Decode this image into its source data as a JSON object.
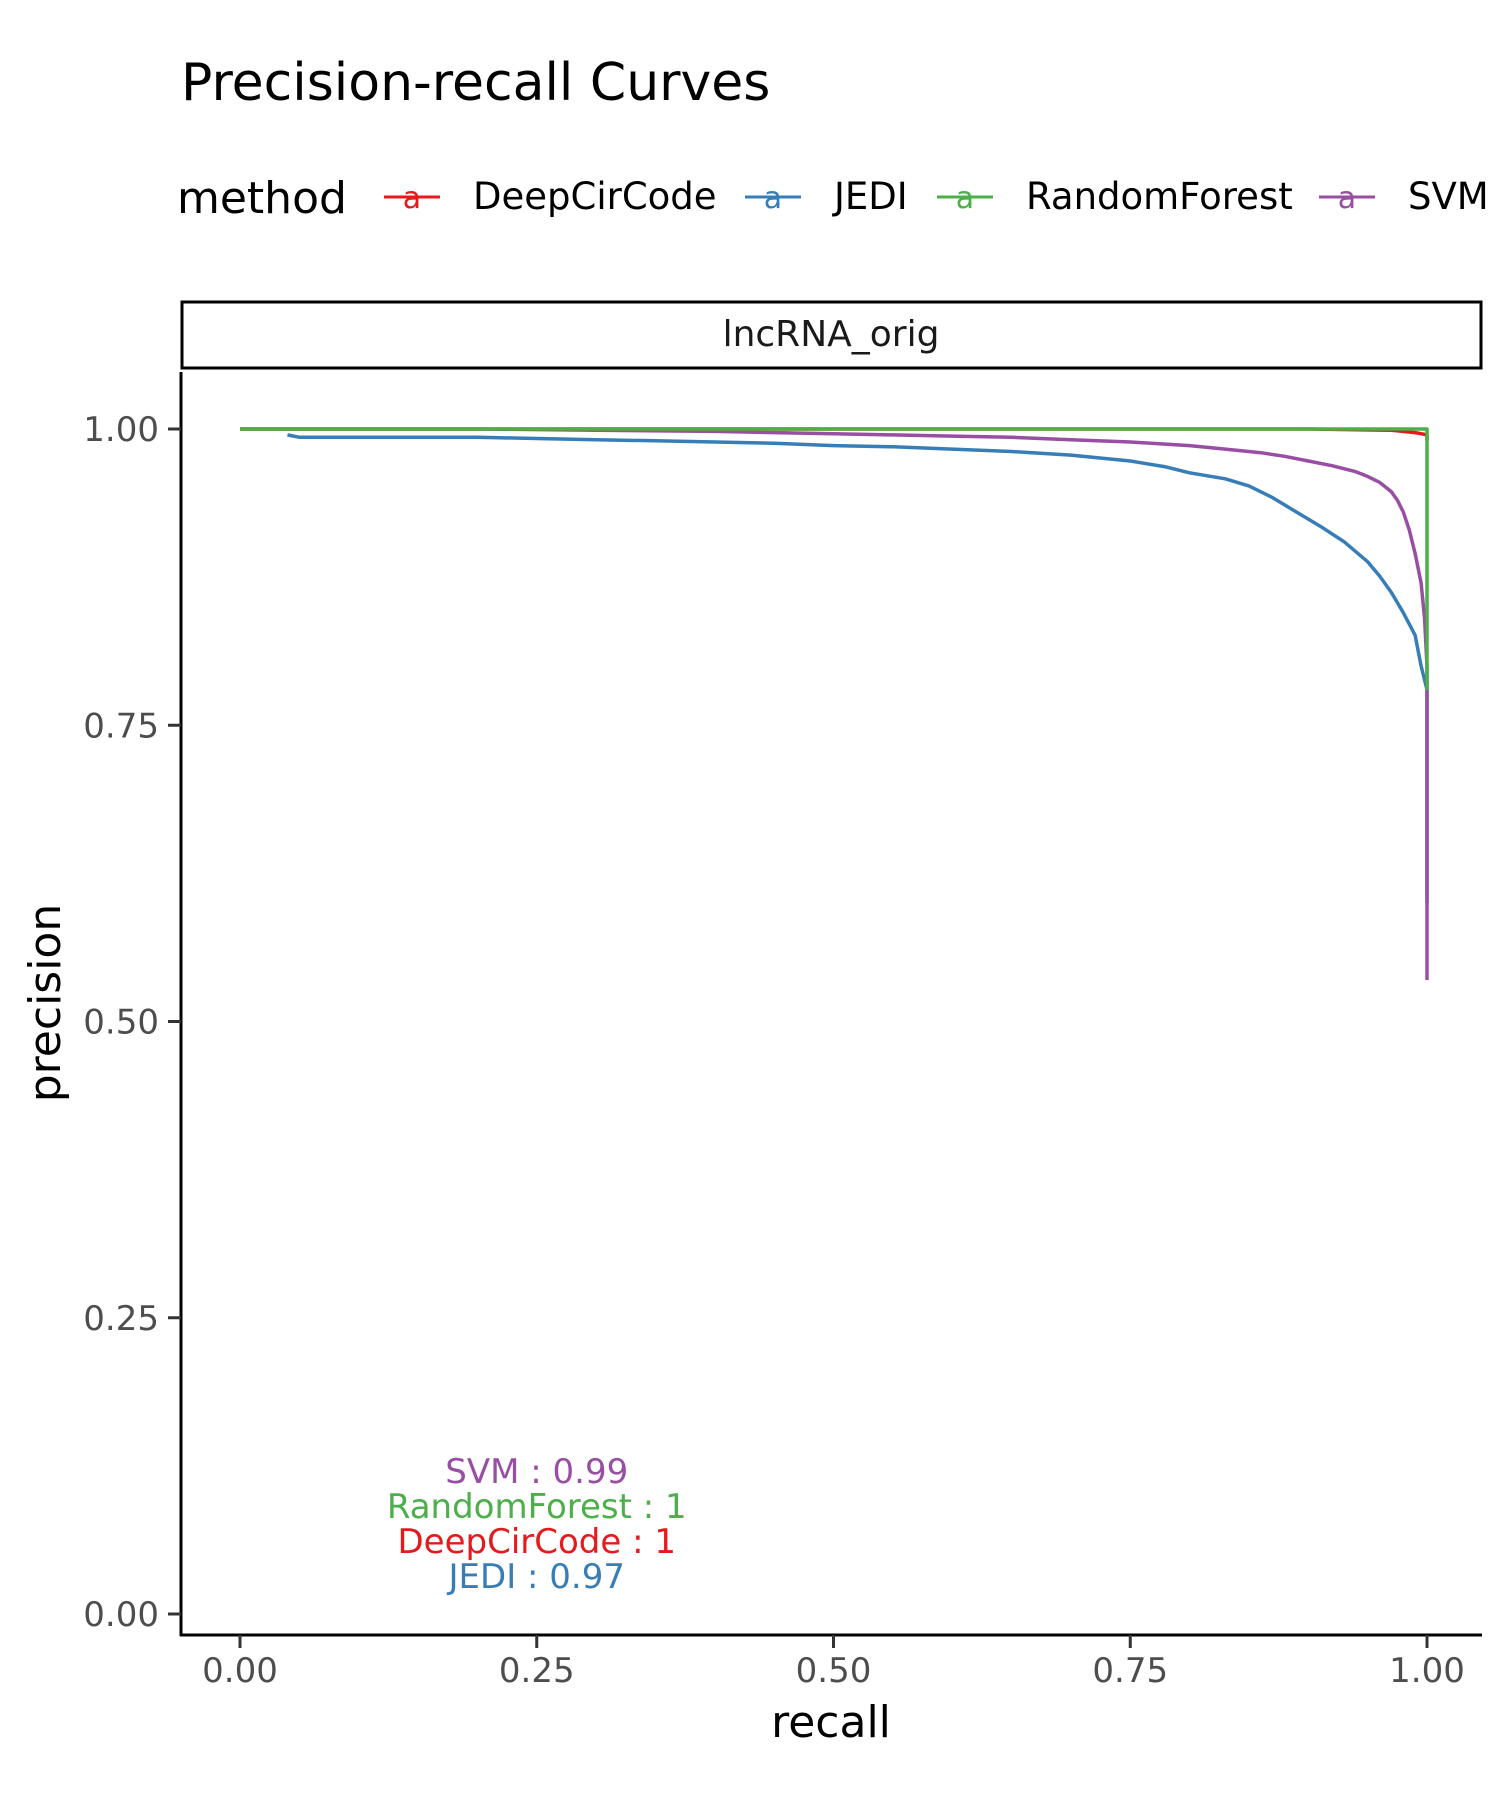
{
  "chart_data": {
    "type": "line",
    "title": "Precision-recall Curves",
    "xlabel": "recall",
    "ylabel": "precision",
    "xlim": [
      0,
      1
    ],
    "ylim": [
      0,
      1
    ],
    "x_ticks": [
      "0.00",
      "0.25",
      "0.50",
      "0.75",
      "1.00"
    ],
    "y_ticks": [
      "0.00",
      "0.25",
      "0.50",
      "0.75",
      "1.00"
    ],
    "facet_label": "lncRNA_orig",
    "legend": {
      "title": "method",
      "position": "top",
      "key_glyph": "a",
      "entries": [
        "DeepCirCode",
        "JEDI",
        "RandomForest",
        "SVM"
      ]
    },
    "grid": false,
    "series": [
      {
        "name": "DeepCirCode",
        "color": "#e41a1c",
        "x": [
          0.0,
          0.5,
          0.9,
          0.97,
          0.99,
          0.995,
          1.0,
          1.0
        ],
        "y": [
          1.0,
          1.0,
          1.0,
          0.999,
          0.997,
          0.996,
          0.995,
          0.99
        ]
      },
      {
        "name": "JEDI",
        "color": "#377eb8",
        "x": [
          0.04,
          0.05,
          0.1,
          0.15,
          0.2,
          0.25,
          0.3,
          0.35,
          0.4,
          0.45,
          0.5,
          0.55,
          0.6,
          0.65,
          0.7,
          0.75,
          0.78,
          0.8,
          0.83,
          0.85,
          0.87,
          0.89,
          0.91,
          0.93,
          0.95,
          0.96,
          0.97,
          0.98,
          0.99,
          0.995,
          1.0,
          1.0
        ],
        "y": [
          0.995,
          0.993,
          0.993,
          0.993,
          0.993,
          0.992,
          0.991,
          0.99,
          0.989,
          0.988,
          0.986,
          0.985,
          0.983,
          0.981,
          0.978,
          0.973,
          0.968,
          0.963,
          0.958,
          0.952,
          0.942,
          0.93,
          0.918,
          0.905,
          0.888,
          0.876,
          0.862,
          0.845,
          0.826,
          0.8,
          0.78,
          0.6
        ]
      },
      {
        "name": "RandomForest",
        "color": "#4daf4a",
        "x": [
          0.0,
          0.5,
          0.99,
          0.999,
          1.0,
          1.0
        ],
        "y": [
          1.0,
          1.0,
          1.0,
          1.0,
          1.0,
          0.78
        ]
      },
      {
        "name": "SVM",
        "color": "#984ea3",
        "x": [
          0.0,
          0.1,
          0.2,
          0.3,
          0.4,
          0.5,
          0.55,
          0.6,
          0.65,
          0.7,
          0.75,
          0.8,
          0.83,
          0.86,
          0.88,
          0.9,
          0.92,
          0.94,
          0.95,
          0.96,
          0.97,
          0.975,
          0.98,
          0.985,
          0.99,
          0.995,
          0.998,
          1.0,
          1.0
        ],
        "y": [
          1.0,
          1.0,
          1.0,
          0.999,
          0.998,
          0.996,
          0.995,
          0.994,
          0.993,
          0.991,
          0.989,
          0.986,
          0.983,
          0.98,
          0.977,
          0.973,
          0.969,
          0.964,
          0.96,
          0.955,
          0.947,
          0.94,
          0.93,
          0.915,
          0.895,
          0.87,
          0.84,
          0.8,
          0.535
        ]
      }
    ],
    "annotations": [
      {
        "text": "SVM : 0.99",
        "color": "#984ea3"
      },
      {
        "text": "RandomForest : 1",
        "color": "#4daf4a"
      },
      {
        "text": "DeepCirCode : 1",
        "color": "#e41a1c"
      },
      {
        "text": "JEDI : 0.97",
        "color": "#377eb8"
      }
    ]
  }
}
